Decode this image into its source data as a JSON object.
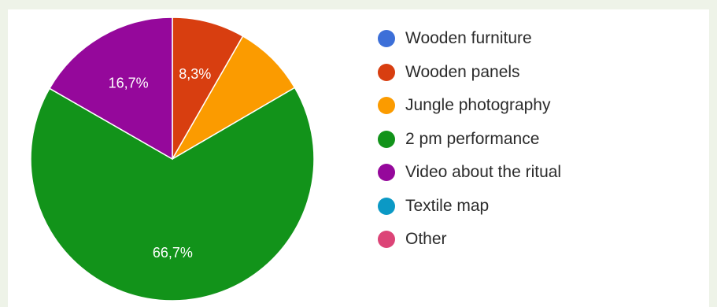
{
  "chart_data": {
    "type": "pie",
    "title": "",
    "legend_position": "right",
    "slices": [
      {
        "label": "Wooden furniture",
        "value": 0,
        "color": "#3c6fd8"
      },
      {
        "label": "Wooden panels",
        "value": 8.3,
        "display": "8,3%",
        "color": "#d83e10"
      },
      {
        "label": "Jungle photography",
        "value": 8.3,
        "display": "",
        "color": "#fb9b00"
      },
      {
        "label": "2 pm performance",
        "value": 66.7,
        "display": "66,7%",
        "color": "#12931a"
      },
      {
        "label": "Video about the ritual",
        "value": 16.7,
        "display": "16,7%",
        "color": "#95089b"
      },
      {
        "label": "Textile map",
        "value": 0,
        "color": "#0b99c5"
      },
      {
        "label": "Other",
        "value": 0,
        "color": "#dc4477"
      }
    ]
  }
}
